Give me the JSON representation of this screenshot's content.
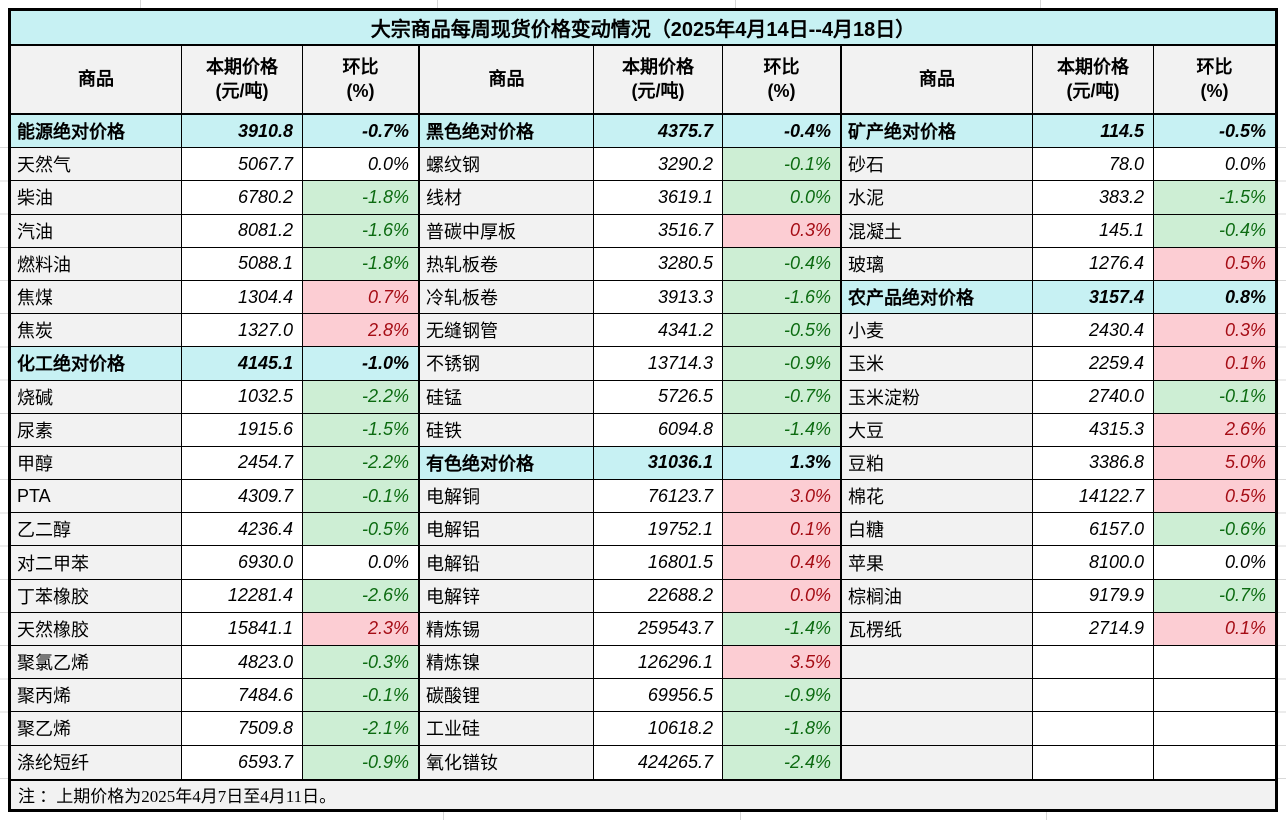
{
  "title": "大宗商品每周现货价格变动情况（2025年4月14日--4月18日）",
  "note": "注 ：上期价格为2025年4月7日至4月11日。",
  "header": {
    "commodity": "商品",
    "price": "本期价格\n(元/吨)",
    "pct": "环比\n(%)"
  },
  "colors": {
    "section_cyan": "#c7f1f3",
    "header_gray": "#f2f2f2",
    "increase_bg": "#fccdd3",
    "increase_text": "#a50d15",
    "decrease_bg": "#cdeed4",
    "decrease_text": "#0c6b11"
  },
  "groups": [
    {
      "rows": [
        {
          "type": "section",
          "name": "能源绝对价格",
          "price": "3910.8",
          "pct": "-0.7%"
        },
        {
          "type": "item",
          "name": "天然气",
          "price": "5067.7",
          "pct": "0.0%",
          "trend": "flat"
        },
        {
          "type": "item",
          "name": "柴油",
          "price": "6780.2",
          "pct": "-1.8%",
          "trend": "down"
        },
        {
          "type": "item",
          "name": "汽油",
          "price": "8081.2",
          "pct": "-1.6%",
          "trend": "down"
        },
        {
          "type": "item",
          "name": "燃料油",
          "price": "5088.1",
          "pct": "-1.8%",
          "trend": "down"
        },
        {
          "type": "item",
          "name": "焦煤",
          "price": "1304.4",
          "pct": "0.7%",
          "trend": "up"
        },
        {
          "type": "item",
          "name": "焦炭",
          "price": "1327.0",
          "pct": "2.8%",
          "trend": "up"
        },
        {
          "type": "section",
          "name": "化工绝对价格",
          "price": "4145.1",
          "pct": "-1.0%"
        },
        {
          "type": "item",
          "name": "烧碱",
          "price": "1032.5",
          "pct": "-2.2%",
          "trend": "down"
        },
        {
          "type": "item",
          "name": "尿素",
          "price": "1915.6",
          "pct": "-1.5%",
          "trend": "down"
        },
        {
          "type": "item",
          "name": "甲醇",
          "price": "2454.7",
          "pct": "-2.2%",
          "trend": "down"
        },
        {
          "type": "item",
          "name": "PTA",
          "price": "4309.7",
          "pct": "-0.1%",
          "trend": "down"
        },
        {
          "type": "item",
          "name": "乙二醇",
          "price": "4236.4",
          "pct": "-0.5%",
          "trend": "down"
        },
        {
          "type": "item",
          "name": "对二甲苯",
          "price": "6930.0",
          "pct": "0.0%",
          "trend": "flat"
        },
        {
          "type": "item",
          "name": "丁苯橡胶",
          "price": "12281.4",
          "pct": "-2.6%",
          "trend": "down"
        },
        {
          "type": "item",
          "name": "天然橡胶",
          "price": "15841.1",
          "pct": "2.3%",
          "trend": "up"
        },
        {
          "type": "item",
          "name": "聚氯乙烯",
          "price": "4823.0",
          "pct": "-0.3%",
          "trend": "down"
        },
        {
          "type": "item",
          "name": "聚丙烯",
          "price": "7484.6",
          "pct": "-0.1%",
          "trend": "down"
        },
        {
          "type": "item",
          "name": "聚乙烯",
          "price": "7509.8",
          "pct": "-2.1%",
          "trend": "down"
        },
        {
          "type": "item",
          "name": "涤纶短纤",
          "price": "6593.7",
          "pct": "-0.9%",
          "trend": "down"
        }
      ]
    },
    {
      "rows": [
        {
          "type": "section",
          "name": "黑色绝对价格",
          "price": "4375.7",
          "pct": "-0.4%"
        },
        {
          "type": "item",
          "name": "螺纹钢",
          "price": "3290.2",
          "pct": "-0.1%",
          "trend": "down"
        },
        {
          "type": "item",
          "name": "线材",
          "price": "3619.1",
          "pct": "0.0%",
          "trend": "down"
        },
        {
          "type": "item",
          "name": "普碳中厚板",
          "price": "3516.7",
          "pct": "0.3%",
          "trend": "up"
        },
        {
          "type": "item",
          "name": "热轧板卷",
          "price": "3280.5",
          "pct": "-0.4%",
          "trend": "down"
        },
        {
          "type": "item",
          "name": "冷轧板卷",
          "price": "3913.3",
          "pct": "-1.6%",
          "trend": "down"
        },
        {
          "type": "item",
          "name": "无缝钢管",
          "price": "4341.2",
          "pct": "-0.5%",
          "trend": "down"
        },
        {
          "type": "item",
          "name": "不锈钢",
          "price": "13714.3",
          "pct": "-0.9%",
          "trend": "down"
        },
        {
          "type": "item",
          "name": "硅锰",
          "price": "5726.5",
          "pct": "-0.7%",
          "trend": "down"
        },
        {
          "type": "item",
          "name": "硅铁",
          "price": "6094.8",
          "pct": "-1.4%",
          "trend": "down"
        },
        {
          "type": "section",
          "name": "有色绝对价格",
          "price": "31036.1",
          "pct": "1.3%"
        },
        {
          "type": "item",
          "name": "电解铜",
          "price": "76123.7",
          "pct": "3.0%",
          "trend": "up"
        },
        {
          "type": "item",
          "name": "电解铝",
          "price": "19752.1",
          "pct": "0.1%",
          "trend": "up"
        },
        {
          "type": "item",
          "name": "电解铅",
          "price": "16801.5",
          "pct": "0.4%",
          "trend": "up"
        },
        {
          "type": "item",
          "name": "电解锌",
          "price": "22688.2",
          "pct": "0.0%",
          "trend": "up"
        },
        {
          "type": "item",
          "name": "精炼锡",
          "price": "259543.7",
          "pct": "-1.4%",
          "trend": "down"
        },
        {
          "type": "item",
          "name": "精炼镍",
          "price": "126296.1",
          "pct": "3.5%",
          "trend": "up"
        },
        {
          "type": "item",
          "name": "碳酸锂",
          "price": "69956.5",
          "pct": "-0.9%",
          "trend": "down"
        },
        {
          "type": "item",
          "name": "工业硅",
          "price": "10618.2",
          "pct": "-1.8%",
          "trend": "down"
        },
        {
          "type": "item",
          "name": "氧化镨钕",
          "price": "424265.7",
          "pct": "-2.4%",
          "trend": "down"
        }
      ]
    },
    {
      "rows": [
        {
          "type": "section",
          "name": "矿产绝对价格",
          "price": "114.5",
          "pct": "-0.5%"
        },
        {
          "type": "item",
          "name": "砂石",
          "price": "78.0",
          "pct": "0.0%",
          "trend": "flat"
        },
        {
          "type": "item",
          "name": "水泥",
          "price": "383.2",
          "pct": "-1.5%",
          "trend": "down"
        },
        {
          "type": "item",
          "name": "混凝土",
          "price": "145.1",
          "pct": "-0.4%",
          "trend": "down"
        },
        {
          "type": "item",
          "name": "玻璃",
          "price": "1276.4",
          "pct": "0.5%",
          "trend": "up"
        },
        {
          "type": "section",
          "name": "农产品绝对价格",
          "price": "3157.4",
          "pct": "0.8%"
        },
        {
          "type": "item",
          "name": "小麦",
          "price": "2430.4",
          "pct": "0.3%",
          "trend": "up"
        },
        {
          "type": "item",
          "name": "玉米",
          "price": "2259.4",
          "pct": "0.1%",
          "trend": "up"
        },
        {
          "type": "item",
          "name": "玉米淀粉",
          "price": "2740.0",
          "pct": "-0.1%",
          "trend": "down"
        },
        {
          "type": "item",
          "name": "大豆",
          "price": "4315.3",
          "pct": "2.6%",
          "trend": "up"
        },
        {
          "type": "item",
          "name": "豆粕",
          "price": "3386.8",
          "pct": "5.0%",
          "trend": "up"
        },
        {
          "type": "item",
          "name": "棉花",
          "price": "14122.7",
          "pct": "0.5%",
          "trend": "up"
        },
        {
          "type": "item",
          "name": "白糖",
          "price": "6157.0",
          "pct": "-0.6%",
          "trend": "down"
        },
        {
          "type": "item",
          "name": "苹果",
          "price": "8100.0",
          "pct": "0.0%",
          "trend": "flat"
        },
        {
          "type": "item",
          "name": "棕榈油",
          "price": "9179.9",
          "pct": "-0.7%",
          "trend": "down"
        },
        {
          "type": "item",
          "name": "瓦楞纸",
          "price": "2714.9",
          "pct": "0.1%",
          "trend": "up"
        },
        {
          "type": "empty",
          "name": "",
          "price": "",
          "pct": ""
        },
        {
          "type": "empty",
          "name": "",
          "price": "",
          "pct": ""
        },
        {
          "type": "empty",
          "name": "",
          "price": "",
          "pct": ""
        },
        {
          "type": "empty",
          "name": "",
          "price": "",
          "pct": ""
        }
      ]
    }
  ]
}
